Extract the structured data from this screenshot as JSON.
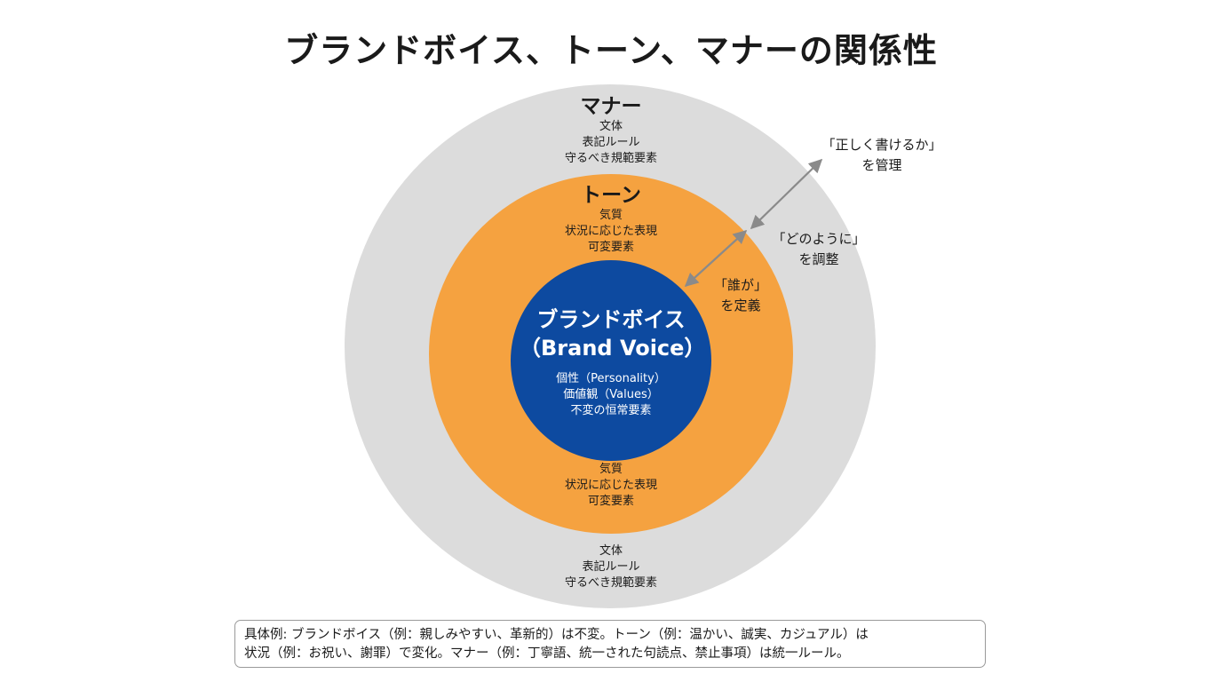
{
  "title": "ブランドボイス、トーン、マナーの関係性",
  "manner": {
    "heading": "マナー",
    "lines": [
      "文体",
      "表記ルール",
      "守るべき規範要素"
    ]
  },
  "tone": {
    "heading": "トーン",
    "lines": [
      "気質",
      "状況に応じた表現",
      "可変要素"
    ]
  },
  "voice": {
    "title_ja": "ブランドボイス",
    "title_en": "（Brand Voice）",
    "lines": [
      "個性（Personality）",
      "価値観（Values）",
      "不変の恒常要素"
    ]
  },
  "annotations": {
    "manner": [
      "「正しく書けるか」",
      "を管理"
    ],
    "tone": [
      "「どのように」",
      "を調整"
    ],
    "voice": [
      "「誰が」",
      "を定義"
    ]
  },
  "note": {
    "line1": "具体例: ブランドボイス（例：親しみやすい、革新的）は不変。トーン（例：温かい、誠実、カジュアル）は",
    "line2": "状況（例：お祝い、謝罪）で変化。マナー（例：丁寧語、統一された句読点、禁止事項）は統一ルール。"
  },
  "colors": {
    "manner_ring": "#dcdcdc",
    "tone_ring": "#f5a240",
    "voice_core": "#0d4aa0",
    "arrow": "#8a8a8a"
  }
}
